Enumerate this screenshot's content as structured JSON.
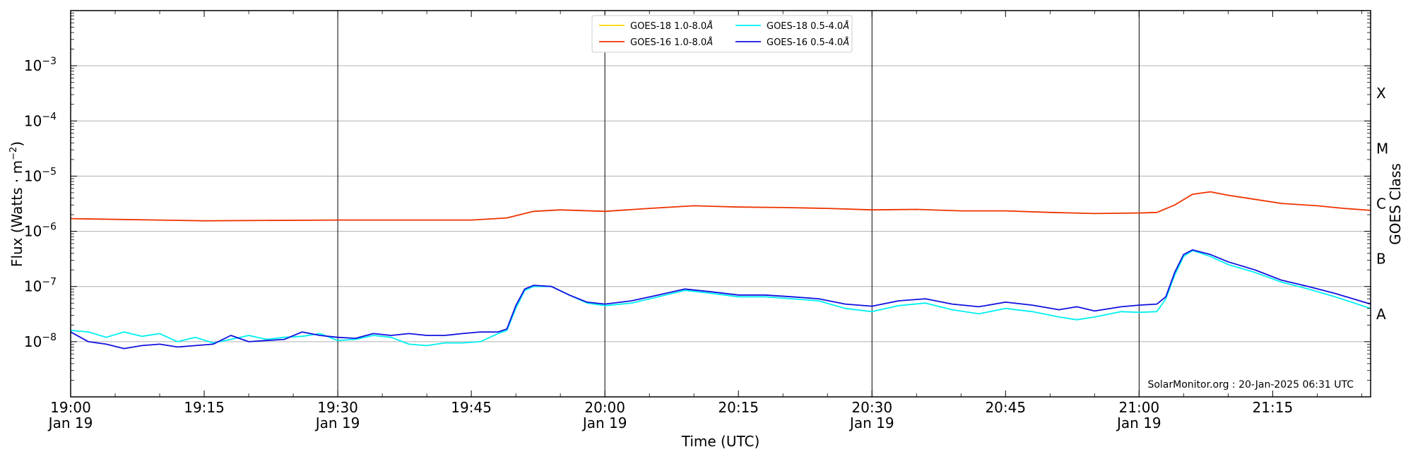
{
  "chart_data": {
    "type": "line",
    "title": "",
    "xlabel": "Time (UTC)",
    "ylabel": "Flux (Watts · m",
    "ylabel_sup": "−2",
    "ylabel_close": ")",
    "y2label": "GOES Class",
    "yscale": "log",
    "xlim": [
      "19:00",
      "21:26"
    ],
    "ylim": [
      1e-09,
      0.01
    ],
    "grid": "horizontal at decades",
    "legend_position": "top-center",
    "credit": "SolarMonitor.org : 20-Jan-2025 06:31 UTC",
    "x_ticks": [
      {
        "t": "19:00",
        "line1": "19:00",
        "line2": "Jan 19",
        "vline": true
      },
      {
        "t": "19:15",
        "line1": "19:15",
        "line2": "",
        "vline": false
      },
      {
        "t": "19:30",
        "line1": "19:30",
        "line2": "Jan 19",
        "vline": true
      },
      {
        "t": "19:45",
        "line1": "19:45",
        "line2": "",
        "vline": false
      },
      {
        "t": "20:00",
        "line1": "20:00",
        "line2": "Jan 19",
        "vline": true
      },
      {
        "t": "20:15",
        "line1": "20:15",
        "line2": "",
        "vline": false
      },
      {
        "t": "20:30",
        "line1": "20:30",
        "line2": "Jan 19",
        "vline": true
      },
      {
        "t": "20:45",
        "line1": "20:45",
        "line2": "",
        "vline": false
      },
      {
        "t": "21:00",
        "line1": "21:00",
        "line2": "Jan 19",
        "vline": true
      },
      {
        "t": "21:15",
        "line1": "21:15",
        "line2": "",
        "vline": false
      }
    ],
    "y_ticks": [
      {
        "value": 1e-08,
        "mantissa": "10",
        "exp": "−8"
      },
      {
        "value": 1e-07,
        "mantissa": "10",
        "exp": "−7"
      },
      {
        "value": 1e-06,
        "mantissa": "10",
        "exp": "−6"
      },
      {
        "value": 1e-05,
        "mantissa": "10",
        "exp": "−5"
      },
      {
        "value": 0.0001,
        "mantissa": "10",
        "exp": "−4"
      },
      {
        "value": 0.001,
        "mantissa": "10",
        "exp": "−3"
      }
    ],
    "classes": [
      {
        "label": "X",
        "value": 0.000316
      },
      {
        "label": "M",
        "value": 3.16e-05
      },
      {
        "label": "C",
        "value": 3.16e-06
      },
      {
        "label": "B",
        "value": 3.16e-07
      },
      {
        "label": "A",
        "value": 3.16e-08
      }
    ],
    "legend": [
      {
        "label": "GOES-18 1.0-8.0",
        "unit": "Å",
        "color": "#ffd700"
      },
      {
        "label": "GOES-16 1.0-8.0",
        "unit": "Å",
        "color": "#ee3300"
      },
      {
        "label": "GOES-18 0.5-4.0",
        "unit": "Å",
        "color": "#00f0f0"
      },
      {
        "label": "GOES-16 0.5-4.0",
        "unit": "Å",
        "color": "#1010e0"
      }
    ],
    "series": [
      {
        "name": "GOES-16 1.0-8.0Å",
        "color": "#ee3300",
        "x": [
          "19:00",
          "19:15",
          "19:30",
          "19:45",
          "19:49",
          "19:52",
          "19:55",
          "20:00",
          "20:05",
          "20:10",
          "20:15",
          "20:20",
          "20:25",
          "20:30",
          "20:35",
          "20:40",
          "20:45",
          "20:50",
          "20:55",
          "21:00",
          "21:02",
          "21:04",
          "21:06",
          "21:08",
          "21:10",
          "21:13",
          "21:16",
          "21:20",
          "21:23",
          "21:26"
        ],
        "y": [
          1.7e-06,
          1.55e-06,
          1.6e-06,
          1.6e-06,
          1.75e-06,
          2.3e-06,
          2.45e-06,
          2.3e-06,
          2.6e-06,
          2.9e-06,
          2.75e-06,
          2.7e-06,
          2.6e-06,
          2.45e-06,
          2.5e-06,
          2.35e-06,
          2.35e-06,
          2.2e-06,
          2.1e-06,
          2.15e-06,
          2.2e-06,
          3e-06,
          4.7e-06,
          5.2e-06,
          4.5e-06,
          3.8e-06,
          3.2e-06,
          2.9e-06,
          2.6e-06,
          2.4e-06
        ]
      },
      {
        "name": "GOES-18 0.5-4.0Å",
        "color": "#00f0f0",
        "x": [
          "19:00",
          "19:02",
          "19:04",
          "19:06",
          "19:08",
          "19:10",
          "19:12",
          "19:14",
          "19:16",
          "19:18",
          "19:20",
          "19:22",
          "19:24",
          "19:26",
          "19:28",
          "19:30",
          "19:32",
          "19:34",
          "19:36",
          "19:38",
          "19:40",
          "19:42",
          "19:44",
          "19:46",
          "19:48",
          "19:49",
          "19:50",
          "19:51",
          "19:52",
          "19:54",
          "19:56",
          "19:58",
          "20:00",
          "20:03",
          "20:06",
          "20:09",
          "20:12",
          "20:15",
          "20:18",
          "20:21",
          "20:24",
          "20:27",
          "20:30",
          "20:33",
          "20:36",
          "20:39",
          "20:42",
          "20:45",
          "20:48",
          "20:51",
          "20:53",
          "20:55",
          "20:58",
          "21:00",
          "21:02",
          "21:03",
          "21:04",
          "21:05",
          "21:06",
          "21:08",
          "21:10",
          "21:13",
          "21:16",
          "21:19",
          "21:22",
          "21:26"
        ],
        "y": [
          1.6e-08,
          1.5e-08,
          1.2e-08,
          1.5e-08,
          1.25e-08,
          1.4e-08,
          1e-08,
          1.2e-08,
          9.5e-09,
          1.1e-08,
          1.3e-08,
          1.1e-08,
          1.2e-08,
          1.25e-08,
          1.4e-08,
          1.05e-08,
          1.1e-08,
          1.3e-08,
          1.2e-08,
          9e-09,
          8.5e-09,
          9.5e-09,
          9.5e-09,
          1e-08,
          1.4e-08,
          1.6e-08,
          4e-08,
          8.5e-08,
          1e-07,
          1e-07,
          7e-08,
          5e-08,
          4.5e-08,
          5e-08,
          6.5e-08,
          8.5e-08,
          7.5e-08,
          6.5e-08,
          6.5e-08,
          6e-08,
          5.5e-08,
          4e-08,
          3.5e-08,
          4.5e-08,
          5e-08,
          3.8e-08,
          3.2e-08,
          4e-08,
          3.5e-08,
          2.8e-08,
          2.5e-08,
          2.8e-08,
          3.5e-08,
          3.4e-08,
          3.5e-08,
          6e-08,
          1.6e-07,
          3.5e-07,
          4.5e-07,
          3.5e-07,
          2.5e-07,
          1.8e-07,
          1.2e-07,
          9e-08,
          6.5e-08,
          4e-08
        ]
      },
      {
        "name": "GOES-16 0.5-4.0Å",
        "color": "#1010e0",
        "x": [
          "19:00",
          "19:02",
          "19:04",
          "19:06",
          "19:08",
          "19:10",
          "19:12",
          "19:14",
          "19:16",
          "19:18",
          "19:20",
          "19:22",
          "19:24",
          "19:26",
          "19:28",
          "19:30",
          "19:32",
          "19:34",
          "19:36",
          "19:38",
          "19:40",
          "19:42",
          "19:44",
          "19:46",
          "19:48",
          "19:49",
          "19:50",
          "19:51",
          "19:52",
          "19:54",
          "19:56",
          "19:58",
          "20:00",
          "20:03",
          "20:06",
          "20:09",
          "20:12",
          "20:15",
          "20:18",
          "20:21",
          "20:24",
          "20:27",
          "20:30",
          "20:33",
          "20:36",
          "20:39",
          "20:42",
          "20:45",
          "20:48",
          "20:51",
          "20:53",
          "20:55",
          "20:58",
          "21:00",
          "21:02",
          "21:03",
          "21:04",
          "21:05",
          "21:06",
          "21:08",
          "21:10",
          "21:13",
          "21:16",
          "21:19",
          "21:22",
          "21:26"
        ],
        "y": [
          1.5e-08,
          1e-08,
          9e-09,
          7.5e-09,
          8.5e-09,
          9e-09,
          8e-09,
          8.5e-09,
          9e-09,
          1.3e-08,
          1e-08,
          1.05e-08,
          1.1e-08,
          1.5e-08,
          1.3e-08,
          1.2e-08,
          1.15e-08,
          1.4e-08,
          1.3e-08,
          1.4e-08,
          1.3e-08,
          1.3e-08,
          1.4e-08,
          1.5e-08,
          1.5e-08,
          1.7e-08,
          4.5e-08,
          9e-08,
          1.05e-07,
          1e-07,
          7e-08,
          5.2e-08,
          4.8e-08,
          5.5e-08,
          7e-08,
          9e-08,
          8e-08,
          7e-08,
          7e-08,
          6.5e-08,
          6e-08,
          4.8e-08,
          4.4e-08,
          5.5e-08,
          6e-08,
          4.8e-08,
          4.3e-08,
          5.2e-08,
          4.6e-08,
          3.8e-08,
          4.3e-08,
          3.6e-08,
          4.3e-08,
          4.6e-08,
          4.8e-08,
          6.5e-08,
          1.8e-07,
          3.8e-07,
          4.6e-07,
          3.8e-07,
          2.8e-07,
          2e-07,
          1.3e-07,
          1e-07,
          7.5e-08,
          4.8e-08
        ]
      }
    ]
  }
}
